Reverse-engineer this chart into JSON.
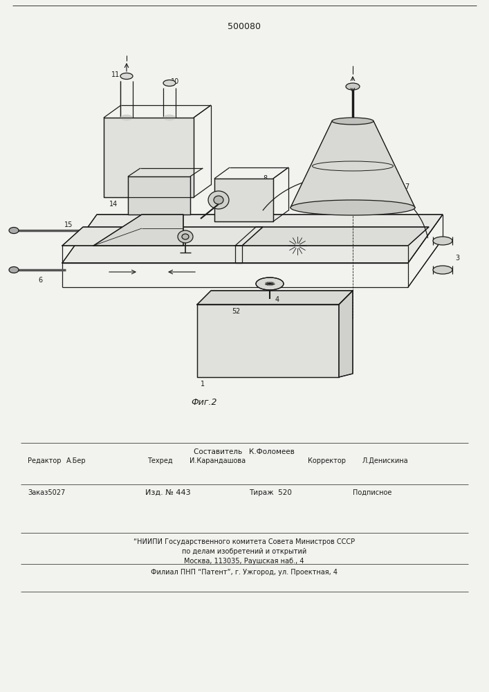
{
  "patent_number": "500080",
  "fig_label": "Фиг.2",
  "bg_color": "#f2f2ee",
  "line_color": "#1a1a1a",
  "footer": {
    "sostavitel_label": "Составитель",
    "sostavitel_name": "К.Фоломеев",
    "redaktor_label": "Редактор",
    "redaktor_name": "А.Бер",
    "tekhred_label": "Техред",
    "tekhred_name": "И.Карандашова",
    "korrektor_label": "Корректор",
    "korrektor_name": "Л.Денискина",
    "zakaz_label": "Заказ",
    "zakaz_num": "5027",
    "izd_label": "Изд. №",
    "izd_num": "443",
    "tirazh_label": "Тираж",
    "tirazh_num": "520",
    "podpisnoe": "Подписное",
    "niippi_line1": "“НИИПИ Государственного комитета Совета Министров СССР",
    "niippi_line2": "по делам изобретений и открытий",
    "niippi_line3": "Москва, 113035, Раушская наб., 4",
    "filial": "Филиал ПНП “Патент”, г. Ужгород, ул. Проектная, 4"
  }
}
